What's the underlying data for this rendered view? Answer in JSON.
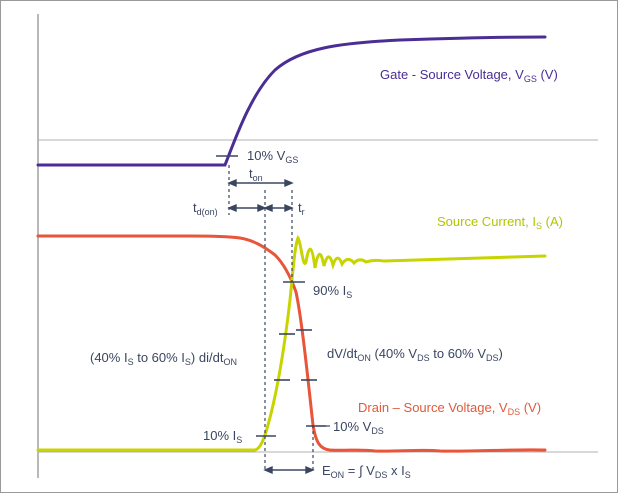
{
  "labels": {
    "gate_source": {
      "main": "Gate - Source Voltage, V",
      "sub": "GS",
      "tail": " (V)"
    },
    "source_current": {
      "main": "Source Current, I",
      "sub": "S",
      "tail": " (A)"
    },
    "drain_source": {
      "main": "Drain – Source Voltage, V",
      "sub": "DS",
      "tail": " (V)"
    },
    "vgs_10": {
      "main": "10% V",
      "sub": "GS"
    },
    "t_on": {
      "main": "t",
      "sub": "on"
    },
    "t_d_on": {
      "main": "t",
      "sub": "d(on)"
    },
    "t_r": {
      "main": "t",
      "sub": "r"
    },
    "is_90": {
      "main": "90% I",
      "sub": "S"
    },
    "di_dt": {
      "p1": "(40% I",
      "s1": "S",
      "p2": " to 60% I",
      "s2": "S",
      "p3": ") di/dt",
      "s3": "ON"
    },
    "dv_dt": {
      "p1": "dV/dt",
      "s1": "ON",
      "p2": " (40% V",
      "s2": "DS",
      "p3": " to 60% V",
      "s3": "DS",
      "p4": ")"
    },
    "is_10": {
      "main": "10% I",
      "sub": "S"
    },
    "vds_10": {
      "main": "10% V",
      "sub": "DS"
    },
    "e_on": {
      "p1": "E",
      "s1": "ON",
      "p2": " = ∫ V",
      "s2": "DS",
      "p3": " x I",
      "s3": "S"
    }
  },
  "colors": {
    "gate": "#4a2e94",
    "source_current": "#c8d400",
    "drain_source": "#e8553a",
    "annotation": "#3a4660",
    "baseline": "#b0b0b0"
  }
}
